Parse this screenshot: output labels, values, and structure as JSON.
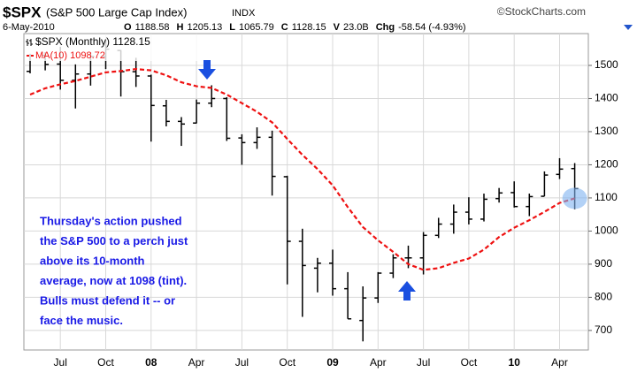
{
  "chart_data": {
    "type": "ohlc",
    "symbol": "$SPX",
    "index_name": "(S&P 500 Large Cap Index)",
    "exchange": "INDX",
    "source": "©StockCharts.com",
    "date": "6-May-2010",
    "quote": [
      {
        "label": "O",
        "value": 1188.58
      },
      {
        "label": "H",
        "value": 1205.13
      },
      {
        "label": "L",
        "value": 1065.79
      },
      {
        "label": "C",
        "value": 1128.15
      },
      {
        "label": "V",
        "value": "23.0B"
      },
      {
        "label": "Chg",
        "value": -58.54,
        "pct": "(-4.93%)"
      }
    ],
    "annotation": [
      "Thursday's action pushed",
      "the S&P 500 to a perch just",
      "above its 10-month",
      "average, now at 1098 (tint).",
      "Bulls must defend it -- or",
      "face the music."
    ],
    "categories": [
      null,
      null,
      "Jul",
      null,
      null,
      "Oct",
      null,
      null,
      "08",
      null,
      null,
      "Apr",
      null,
      null,
      "Jul",
      null,
      null,
      "Oct",
      null,
      null,
      "09",
      null,
      null,
      "Apr",
      null,
      null,
      "Jul",
      null,
      null,
      "Oct",
      null,
      null,
      "10",
      null,
      null,
      "Apr",
      null
    ],
    "series": [
      {
        "name": "$SPX (Monthly) 1128.15",
        "color": "#000000",
        "open": [
          1482,
          1530,
          1504,
          1455,
          1474,
          1527,
          1545,
          1481,
          1468,
          1378,
          1331,
          1326,
          1386,
          1400,
          1281,
          1267,
          1283,
          1164,
          969,
          888,
          903,
          826,
          730,
          798,
          873,
          919,
          919,
          987,
          1021,
          1057,
          1036,
          1098,
          1116,
          1074,
          1105,
          1171,
          1188.58
        ],
        "high": [
          1535,
          1540,
          1556,
          1503,
          1539,
          1576,
          1546,
          1523,
          1472,
          1396,
          1344,
          1397,
          1440,
          1404,
          1292,
          1313,
          1303,
          1167,
          1007,
          919,
          944,
          876,
          833,
          876,
          930,
          956,
          997,
          1040,
          1080,
          1102,
          1113,
          1130,
          1150,
          1113,
          1180,
          1220,
          1205.13
        ],
        "low": [
          1476,
          1485,
          1427,
          1370,
          1439,
          1489,
          1406,
          1435,
          1270,
          1316,
          1257,
          1325,
          1374,
          1272,
          1200,
          1248,
          1107,
          839,
          741,
          815,
          805,
          735,
          667,
          783,
          858,
          888,
          869,
          979,
          992,
          1020,
          1029,
          1086,
          1071,
          1045,
          1105,
          1157,
          1065.79
        ],
        "close": [
          1530,
          1503,
          1455,
          1474,
          1527,
          1549,
          1481,
          1468,
          1379,
          1331,
          1323,
          1386,
          1400,
          1280,
          1267,
          1283,
          1165,
          969,
          896,
          903,
          826,
          735,
          798,
          873,
          919,
          919,
          987,
          1021,
          1057,
          1036,
          1096,
          1115,
          1074,
          1104,
          1169,
          1187,
          1128.15
        ]
      },
      {
        "name": "MA(10) 1098.72",
        "color": "#ee1111",
        "values": [
          1412,
          1431,
          1443,
          1453,
          1466,
          1479,
          1483,
          1489,
          1485,
          1470,
          1449,
          1437,
          1432,
          1412,
          1386,
          1360,
          1328,
          1278,
          1230,
          1187,
          1138,
          1072,
          1012,
          972,
          937,
          900,
          883,
          888,
          904,
          917,
          944,
          982,
          1010,
          1033,
          1058,
          1085,
          1098.72
        ]
      }
    ],
    "ylim": [
      641,
      1596
    ],
    "yticks": [
      700,
      800,
      900,
      1000,
      1100,
      1200,
      1300,
      1400,
      1500
    ],
    "grid": true
  }
}
